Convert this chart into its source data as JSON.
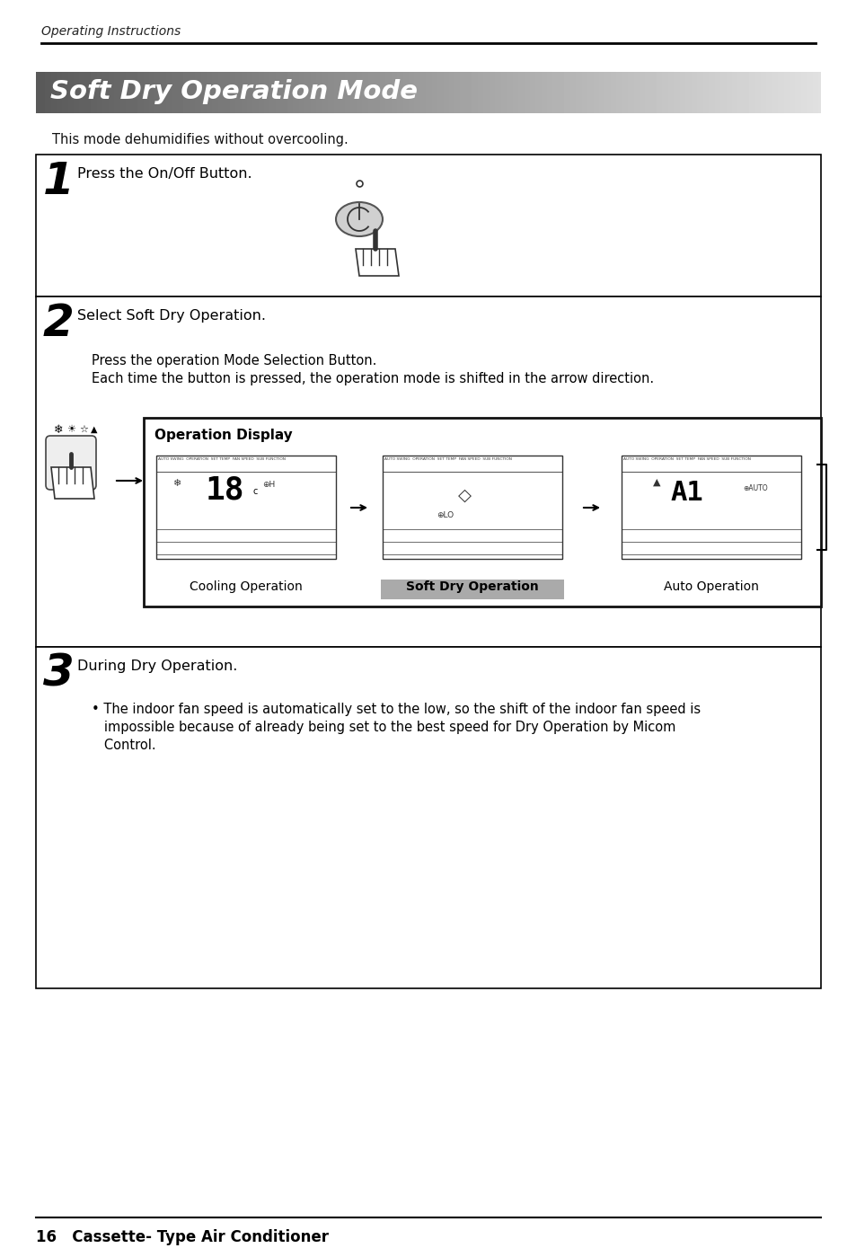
{
  "page_title": "Operating Instructions",
  "section_title": "Soft Dry Operation Mode",
  "subtitle": "This mode dehumidifies without overcooling.",
  "step1_number": "1",
  "step1_text": "Press the On/Off Button.",
  "step2_number": "2",
  "step2_line1": "Select Soft Dry Operation.",
  "step2_line2": "Press the operation Mode Selection Button.",
  "step2_line3": "Each time the button is pressed, the operation mode is shifted in the arrow direction.",
  "op_display_title": "Operation Display",
  "label_cooling": "Cooling Operation",
  "label_soft_dry": "Soft Dry Operation",
  "label_auto": "Auto Operation",
  "step3_number": "3",
  "step3_line1": "During Dry Operation.",
  "step3_bullet": "• The indoor fan speed is automatically set to the low, so the shift of the indoor fan speed is\n   impossible because of already being set to the best speed for Dry Operation by Micom\n   Control.",
  "footer_text": "16   Cassette- Type Air Conditioner",
  "bg_color": "#ffffff",
  "border_color": "#000000"
}
